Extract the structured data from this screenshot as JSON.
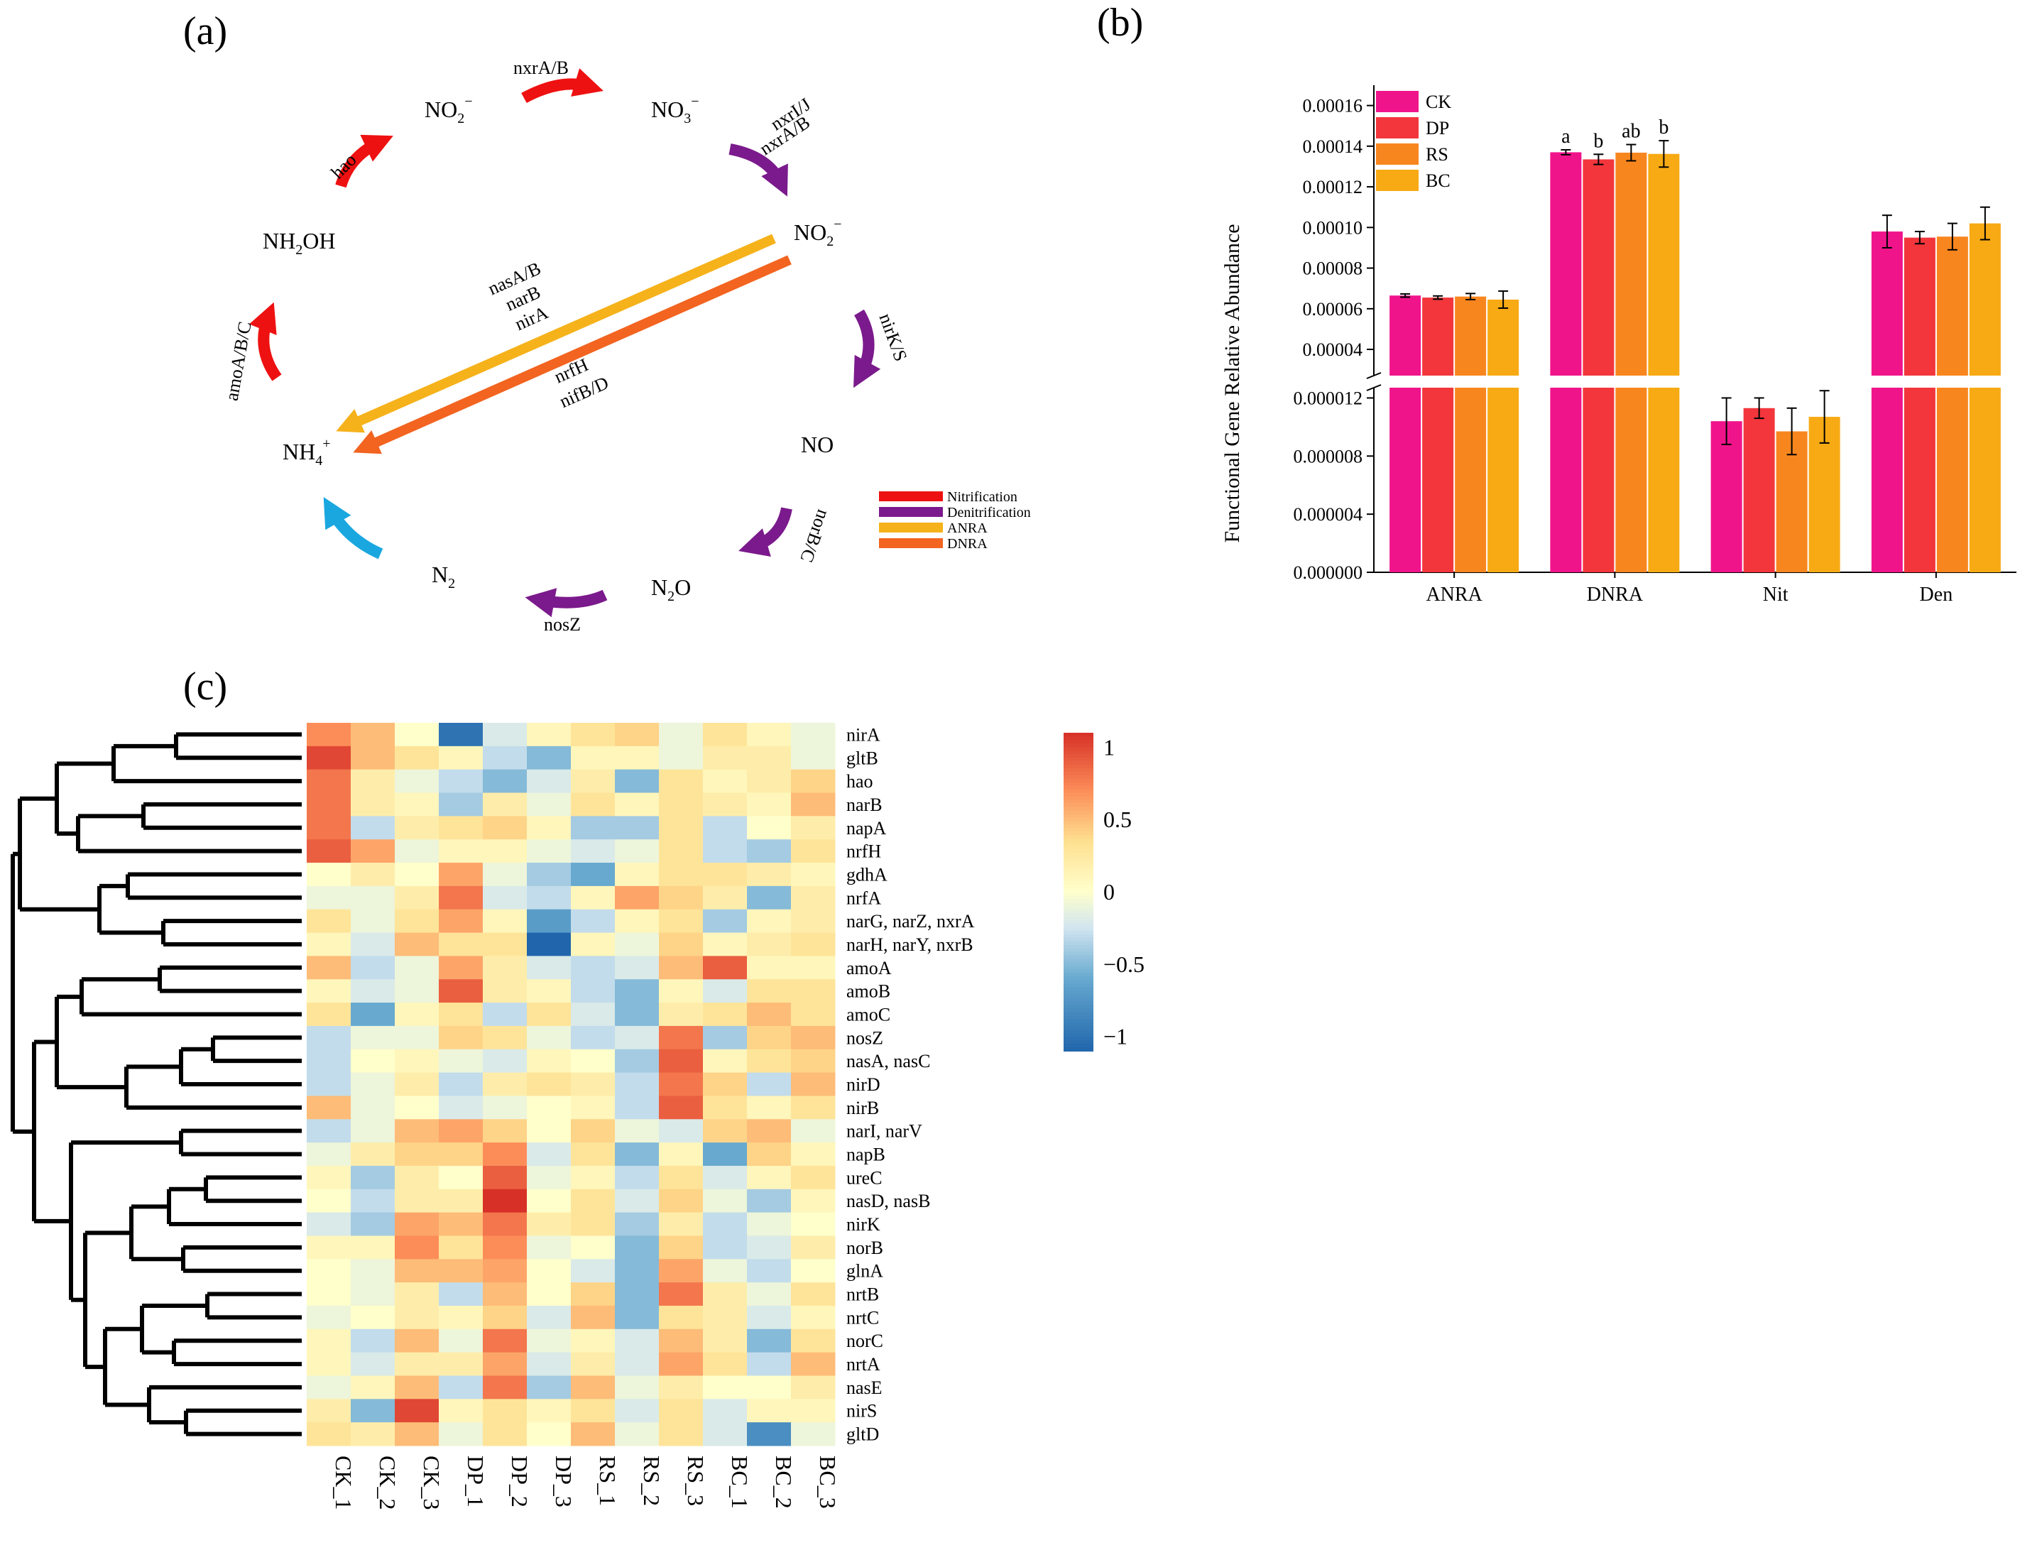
{
  "panels": {
    "a": "(a)",
    "b": "(b)",
    "c": "(c)"
  },
  "colors": {
    "nitrification": "#ee1111",
    "denitrification": "#7b1a8c",
    "anra": "#f5b21b",
    "dnra": "#f26420",
    "n_fixation": "#1aa7e0",
    "CK": "#f0148b",
    "DP": "#f2363c",
    "RS": "#f8861f",
    "BC": "#f7aa14"
  },
  "cycle": {
    "species": {
      "no2_top": {
        "main": "NO",
        "sub": "2",
        "sup": "−"
      },
      "no3": {
        "main": "NO",
        "sub": "3",
        "sup": "−"
      },
      "no2_right": {
        "main": "NO",
        "sub": "2",
        "sup": "−"
      },
      "no": {
        "main": "NO"
      },
      "n2o": {
        "main": "N",
        "sub": "2",
        "tail": "O"
      },
      "n2": {
        "main": "N",
        "sub": "2"
      },
      "nh4": {
        "main": "NH",
        "sub": "4",
        "sup": "+"
      },
      "nh2oh": {
        "main": "NH",
        "sub": "2",
        "tail": "OH"
      }
    },
    "genes": {
      "hao": "hao",
      "nxrab_top": "nxrA/B",
      "nxrij": "nxrI/J",
      "nxrab_right": "nxrA/B",
      "nirks": "nirK/S",
      "norbc": "norB/C",
      "nosz": "nosZ",
      "amoabc": "amoA/B/C",
      "nasab": "nasA/B",
      "narb": "narB",
      "nira": "nirA",
      "nrfh": "nrfH",
      "nifbd": "nifB/D"
    },
    "legend": [
      "Nitrification",
      "Denitrification",
      "ANRA",
      "DNRA"
    ]
  },
  "chart_data": [
    {
      "type": "bar",
      "title": "",
      "ylabel": "Functional Gene Relative Abundance",
      "xlabel": "",
      "categories": [
        "ANRA",
        "DNRA",
        "Nit",
        "Den"
      ],
      "legend": [
        "CK",
        "DP",
        "RS",
        "BC"
      ],
      "series": [
        {
          "name": "CK",
          "values": [
            6.65e-05,
            0.000137,
            1.04e-05,
            9.8e-05
          ],
          "errors": [
            8e-07,
            1.2e-06,
            1.6e-06,
            8e-06
          ]
        },
        {
          "name": "DP",
          "values": [
            6.55e-05,
            0.0001335,
            1.13e-05,
            9.5e-05
          ],
          "errors": [
            8e-07,
            2.5e-06,
            7e-07,
            3e-06
          ]
        },
        {
          "name": "RS",
          "values": [
            6.6e-05,
            0.0001368,
            9.7e-06,
            9.55e-05
          ],
          "errors": [
            1.5e-06,
            4e-06,
            1.6e-06,
            6.5e-06
          ]
        },
        {
          "name": "BC",
          "values": [
            6.45e-05,
            0.0001362,
            1.07e-05,
            0.000102
          ],
          "errors": [
            4.2e-06,
            6.5e-06,
            1.8e-06,
            8e-06
          ]
        }
      ],
      "significance_letters": {
        "DNRA": [
          "a",
          "b",
          "ab",
          "b"
        ]
      },
      "axis_break": true,
      "lower_range": [
        0,
        1.3e-05
      ],
      "upper_range": [
        2.5e-05,
        0.00017
      ],
      "lower_ticks": [
        "0.000000",
        "0.000004",
        "0.000008",
        "0.000012"
      ],
      "upper_ticks": [
        "0.00004",
        "0.00006",
        "0.00008",
        "0.00010",
        "0.00012",
        "0.00014",
        "0.00016"
      ],
      "lower_tick_values": [
        0,
        4e-06,
        8e-06,
        1.2e-05
      ],
      "upper_tick_values": [
        4e-05,
        6e-05,
        8e-05,
        0.0001,
        0.00012,
        0.00014,
        0.00016
      ]
    },
    {
      "type": "heatmap",
      "columns": [
        "CK_1",
        "CK_2",
        "CK_3",
        "DP_1",
        "DP_2",
        "DP_3",
        "RS_1",
        "RS_2",
        "RS_3",
        "BC_1",
        "BC_2",
        "BC_3"
      ],
      "rows": [
        "nirA",
        "gltB",
        "hao",
        "narB",
        "napA",
        "nrfH",
        "gdhA",
        "nrfA",
        "narG,   narZ,   nxrA",
        "narH,   narY,   nxrB",
        "amoA",
        "amoB",
        "amoC",
        "nosZ",
        "nasA, nasC",
        "nirD",
        "nirB",
        "narI,    narV",
        "napB",
        "ureC",
        "nasD, nasB",
        "nirK",
        "norB",
        "glnA",
        "nrtB",
        "nrtC",
        "norC",
        "nrtA",
        "nasE",
        "nirS",
        "gltD"
      ],
      "values": [
        [
          0.7,
          0.5,
          0.0,
          -1.0,
          -0.2,
          0.1,
          0.3,
          0.4,
          -0.1,
          0.3,
          0.1,
          -0.1
        ],
        [
          1.0,
          0.5,
          0.3,
          0.1,
          -0.3,
          -0.5,
          0.1,
          0.1,
          -0.1,
          0.2,
          0.2,
          -0.1
        ],
        [
          0.8,
          0.2,
          -0.1,
          -0.3,
          -0.5,
          -0.2,
          0.2,
          -0.5,
          0.3,
          0.1,
          0.2,
          0.4
        ],
        [
          0.8,
          0.2,
          0.1,
          -0.4,
          0.2,
          -0.1,
          0.3,
          0.1,
          0.3,
          0.2,
          0.1,
          0.5
        ],
        [
          0.8,
          -0.3,
          0.2,
          0.3,
          0.4,
          0.1,
          -0.4,
          -0.4,
          0.3,
          -0.3,
          0.0,
          0.2
        ],
        [
          0.9,
          0.6,
          -0.1,
          0.1,
          0.1,
          -0.1,
          -0.2,
          -0.1,
          0.3,
          -0.3,
          -0.4,
          0.3
        ],
        [
          0.0,
          0.2,
          0.0,
          0.6,
          -0.1,
          -0.4,
          -0.6,
          0.1,
          0.3,
          0.3,
          0.2,
          0.1
        ],
        [
          -0.1,
          -0.1,
          0.2,
          0.8,
          -0.2,
          -0.3,
          0.1,
          0.6,
          0.4,
          0.2,
          -0.5,
          0.2
        ],
        [
          0.3,
          -0.1,
          0.3,
          0.6,
          0.1,
          -0.7,
          -0.3,
          0.1,
          0.3,
          -0.4,
          0.1,
          0.2
        ],
        [
          0.1,
          -0.2,
          0.5,
          0.3,
          0.3,
          -1.1,
          0.1,
          -0.1,
          0.4,
          0.1,
          0.2,
          0.3
        ],
        [
          0.5,
          -0.3,
          -0.1,
          0.6,
          0.2,
          -0.2,
          -0.3,
          -0.2,
          0.5,
          0.9,
          0.1,
          0.1
        ],
        [
          0.1,
          -0.2,
          -0.1,
          0.9,
          0.2,
          0.1,
          -0.3,
          -0.5,
          0.1,
          -0.2,
          0.3,
          0.3
        ],
        [
          0.3,
          -0.6,
          0.1,
          0.3,
          -0.3,
          0.3,
          -0.2,
          -0.5,
          0.2,
          0.3,
          0.5,
          0.3
        ],
        [
          -0.3,
          -0.1,
          -0.1,
          0.4,
          0.3,
          -0.1,
          -0.3,
          -0.2,
          0.8,
          -0.4,
          0.4,
          0.5
        ],
        [
          -0.3,
          0.0,
          0.1,
          -0.1,
          -0.2,
          0.1,
          0.0,
          -0.4,
          0.9,
          0.1,
          0.3,
          0.4
        ],
        [
          -0.3,
          -0.1,
          0.2,
          -0.3,
          0.2,
          0.3,
          0.2,
          -0.3,
          0.8,
          0.4,
          -0.3,
          0.5
        ],
        [
          0.5,
          -0.1,
          0.0,
          -0.2,
          -0.1,
          0.0,
          0.1,
          -0.3,
          0.9,
          0.3,
          0.1,
          0.3
        ],
        [
          -0.3,
          -0.1,
          0.5,
          0.6,
          0.4,
          0.0,
          0.4,
          -0.1,
          -0.2,
          0.4,
          0.5,
          -0.1
        ],
        [
          -0.1,
          0.2,
          0.4,
          0.4,
          0.7,
          -0.2,
          0.3,
          -0.5,
          0.1,
          -0.6,
          0.4,
          0.1
        ],
        [
          0.1,
          -0.4,
          0.2,
          0.0,
          0.9,
          -0.1,
          0.1,
          -0.3,
          0.3,
          -0.2,
          0.1,
          0.3
        ],
        [
          0.0,
          -0.3,
          0.2,
          0.2,
          1.1,
          0.0,
          0.3,
          -0.2,
          0.4,
          -0.1,
          -0.4,
          0.1
        ],
        [
          -0.2,
          -0.4,
          0.6,
          0.5,
          0.8,
          0.2,
          0.3,
          -0.4,
          0.2,
          -0.3,
          -0.1,
          0.0
        ],
        [
          0.1,
          0.1,
          0.7,
          0.3,
          0.7,
          -0.1,
          0.0,
          -0.5,
          0.4,
          -0.3,
          -0.2,
          0.2
        ],
        [
          0.0,
          -0.1,
          0.5,
          0.5,
          0.6,
          0.0,
          -0.2,
          -0.5,
          0.6,
          -0.1,
          -0.3,
          0.0
        ],
        [
          0.0,
          -0.1,
          0.2,
          -0.3,
          0.5,
          0.0,
          0.4,
          -0.5,
          0.8,
          0.2,
          -0.1,
          0.3
        ],
        [
          -0.1,
          0.0,
          0.2,
          0.1,
          0.4,
          -0.2,
          0.5,
          -0.5,
          0.3,
          0.2,
          -0.2,
          0.1
        ],
        [
          0.1,
          -0.3,
          0.5,
          -0.1,
          0.8,
          -0.1,
          0.1,
          -0.2,
          0.5,
          0.2,
          -0.5,
          0.3
        ],
        [
          0.1,
          -0.2,
          0.2,
          0.2,
          0.6,
          -0.2,
          0.2,
          -0.2,
          0.6,
          0.3,
          -0.3,
          0.5
        ],
        [
          -0.1,
          0.1,
          0.5,
          -0.3,
          0.8,
          -0.4,
          0.5,
          -0.1,
          0.2,
          0.0,
          0.0,
          0.2
        ],
        [
          0.2,
          -0.5,
          1.0,
          0.1,
          0.3,
          0.1,
          0.3,
          -0.2,
          0.3,
          -0.2,
          0.1,
          0.1
        ],
        [
          0.3,
          0.2,
          0.5,
          -0.1,
          0.3,
          0.0,
          0.5,
          -0.1,
          0.3,
          -0.2,
          -0.8,
          -0.1
        ]
      ],
      "colorbar": {
        "range": [
          -1.1,
          1.1
        ],
        "ticks": [
          "1",
          "0.5",
          "0",
          "−0.5",
          "−1"
        ],
        "tick_values": [
          1,
          0.5,
          0,
          -0.5,
          -1
        ]
      }
    }
  ]
}
